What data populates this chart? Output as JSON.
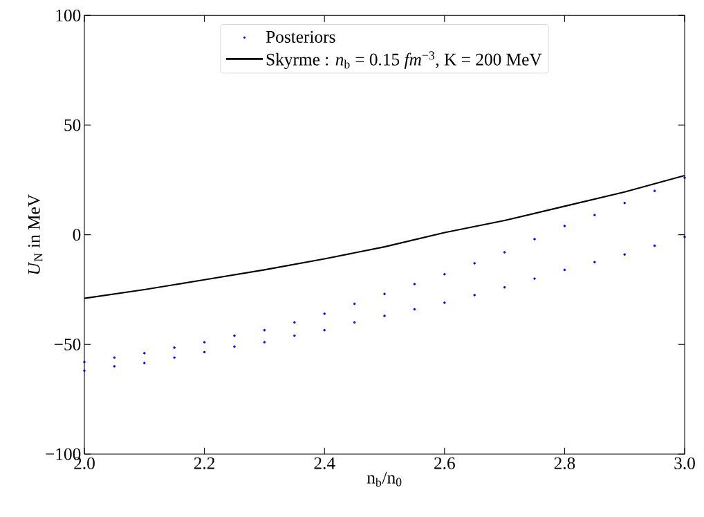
{
  "chart_data": {
    "type": "line",
    "xlabel": "n$_{b}$/n$_{0}$",
    "ylabel": "*U*$_{N}$ in MeV",
    "xlim": [
      2.0,
      3.0
    ],
    "ylim": [
      -100,
      100
    ],
    "xticks": [
      {
        "value": 2.0,
        "label": "2.0"
      },
      {
        "value": 2.2,
        "label": "2.2"
      },
      {
        "value": 2.4,
        "label": "2.4"
      },
      {
        "value": 2.6,
        "label": "2.6"
      },
      {
        "value": 2.8,
        "label": "2.8"
      },
      {
        "value": 3.0,
        "label": "3.0"
      }
    ],
    "yticks": [
      {
        "value": -100,
        "label": "−100"
      },
      {
        "value": -50,
        "label": "−50"
      },
      0,
      50,
      100
    ],
    "legend": "top",
    "grid": false,
    "series": [
      {
        "name": "Posteriors",
        "type": "scatter",
        "marker": "circle",
        "color": "#0000ff",
        "x": [
          2.0,
          2.0,
          2.05,
          2.05,
          2.1,
          2.1,
          2.15,
          2.15,
          2.2,
          2.2,
          2.25,
          2.25,
          2.3,
          2.3,
          2.35,
          2.35,
          2.4,
          2.4,
          2.45,
          2.45,
          2.5,
          2.5,
          2.55,
          2.55,
          2.6,
          2.6,
          2.65,
          2.65,
          2.7,
          2.7,
          2.75,
          2.75,
          2.8,
          2.8,
          2.85,
          2.85,
          2.9,
          2.9,
          2.95,
          2.95,
          3.0,
          3.0
        ],
        "values": [
          -58,
          -62,
          -56,
          -60,
          -54,
          -58.5,
          -51.5,
          -56,
          -49,
          -53.5,
          -46,
          -51,
          -43.5,
          -49,
          -40,
          -46,
          -36,
          -43.5,
          -31.5,
          -40,
          -27,
          -37,
          -22.5,
          -34,
          -18,
          -31,
          -13,
          -27.5,
          -8,
          -24,
          -2,
          -20,
          4,
          -16,
          9,
          -12.5,
          14.5,
          -9,
          20,
          -5,
          26,
          -1
        ]
      },
      {
        "name": "Skyrme : *n*$_{b}$ = 0.15 *fm*$^{−3}$, K = 200 MeV",
        "color": "#000000",
        "line_style": "solid",
        "marker": "none",
        "x": [
          2.0,
          2.1,
          2.2,
          2.3,
          2.4,
          2.5,
          2.6,
          2.7,
          2.8,
          2.9,
          3.0
        ],
        "values": [
          -29,
          -25,
          -20.5,
          -16,
          -11,
          -5.5,
          1,
          6.5,
          13,
          19.5,
          27
        ]
      }
    ]
  }
}
